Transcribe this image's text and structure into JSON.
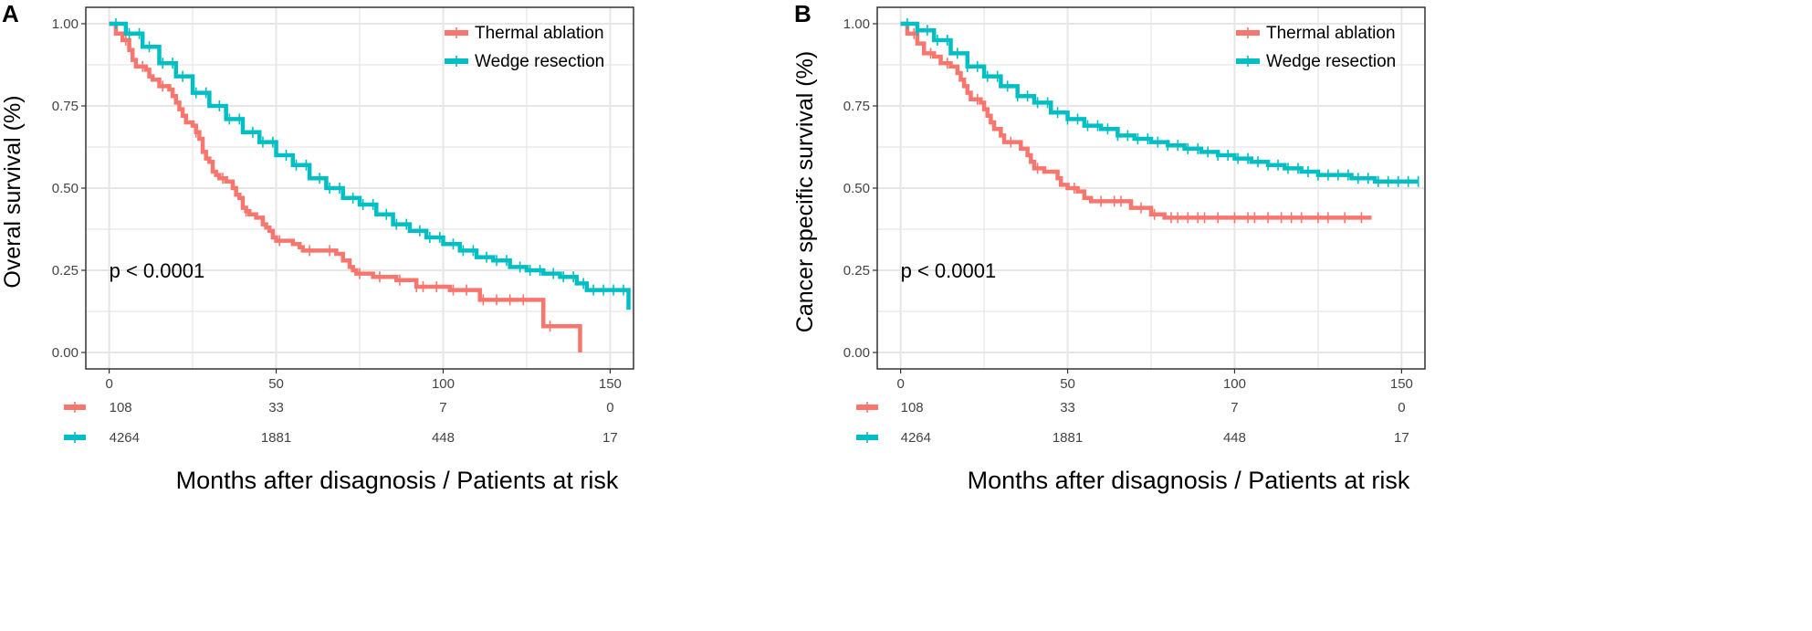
{
  "chart_data": [
    {
      "type": "line",
      "panel_label": "A",
      "ylabel": "Overal survival (%)",
      "xlabel": "Months after disagnosis / Patients at risk",
      "xlim": [
        -7,
        157
      ],
      "ylim": [
        -0.05,
        1.05
      ],
      "x_ticks": [
        "0",
        "50",
        "100",
        "150"
      ],
      "y_ticks": [
        "0.00",
        "0.25",
        "0.50",
        "0.75",
        "1.00"
      ],
      "annotation": "p < 0.0001",
      "legend_position": "top-right",
      "series": [
        {
          "name": "Thermal ablation",
          "color": "#F8766D",
          "points": [
            [
              0,
              1.0
            ],
            [
              2,
              0.97
            ],
            [
              4,
              0.95
            ],
            [
              6,
              0.92
            ],
            [
              7,
              0.89
            ],
            [
              8,
              0.87
            ],
            [
              11,
              0.86
            ],
            [
              12,
              0.84
            ],
            [
              13,
              0.83
            ],
            [
              15,
              0.81
            ],
            [
              18,
              0.8
            ],
            [
              19,
              0.78
            ],
            [
              20,
              0.76
            ],
            [
              21,
              0.74
            ],
            [
              22,
              0.72
            ],
            [
              23,
              0.7
            ],
            [
              25,
              0.69
            ],
            [
              26,
              0.67
            ],
            [
              27,
              0.65
            ],
            [
              28,
              0.61
            ],
            [
              29,
              0.59
            ],
            [
              30,
              0.58
            ],
            [
              31,
              0.55
            ],
            [
              32,
              0.54
            ],
            [
              33,
              0.53
            ],
            [
              35,
              0.52
            ],
            [
              36,
              0.52
            ],
            [
              37,
              0.5
            ],
            [
              38,
              0.48
            ],
            [
              39,
              0.47
            ],
            [
              40,
              0.44
            ],
            [
              41,
              0.43
            ],
            [
              42,
              0.42
            ],
            [
              44,
              0.41
            ],
            [
              46,
              0.39
            ],
            [
              47,
              0.38
            ],
            [
              48,
              0.37
            ],
            [
              49,
              0.35
            ],
            [
              50,
              0.34
            ],
            [
              55,
              0.33
            ],
            [
              57,
              0.32
            ],
            [
              58,
              0.31
            ],
            [
              62,
              0.31
            ],
            [
              68,
              0.3
            ],
            [
              70,
              0.28
            ],
            [
              72,
              0.26
            ],
            [
              73,
              0.25
            ],
            [
              74,
              0.24
            ],
            [
              78,
              0.24
            ],
            [
              79,
              0.23
            ],
            [
              85,
              0.23
            ],
            [
              86,
              0.22
            ],
            [
              91,
              0.22
            ],
            [
              92,
              0.2
            ],
            [
              100,
              0.2
            ],
            [
              102,
              0.19
            ],
            [
              110,
              0.19
            ],
            [
              111,
              0.16
            ],
            [
              123,
              0.16
            ],
            [
              129,
              0.16
            ],
            [
              130,
              0.08
            ],
            [
              140,
              0.08
            ],
            [
              141,
              0.0
            ]
          ],
          "censor_x": [
            5,
            10,
            16,
            26,
            34,
            41,
            51,
            60,
            66,
            75,
            81,
            87,
            92,
            94,
            98,
            103,
            107,
            112,
            116,
            120,
            124,
            132
          ]
        },
        {
          "name": "Wedge resection",
          "color": "#00BFC4",
          "points": [
            [
              0,
              1.0
            ],
            [
              5,
              0.97
            ],
            [
              10,
              0.93
            ],
            [
              15,
              0.88
            ],
            [
              20,
              0.84
            ],
            [
              25,
              0.79
            ],
            [
              30,
              0.75
            ],
            [
              35,
              0.71
            ],
            [
              40,
              0.67
            ],
            [
              45,
              0.64
            ],
            [
              50,
              0.6
            ],
            [
              55,
              0.57
            ],
            [
              60,
              0.53
            ],
            [
              65,
              0.5
            ],
            [
              70,
              0.47
            ],
            [
              75,
              0.45
            ],
            [
              80,
              0.42
            ],
            [
              85,
              0.39
            ],
            [
              90,
              0.37
            ],
            [
              95,
              0.35
            ],
            [
              100,
              0.33
            ],
            [
              105,
              0.31
            ],
            [
              110,
              0.29
            ],
            [
              115,
              0.28
            ],
            [
              120,
              0.26
            ],
            [
              125,
              0.25
            ],
            [
              130,
              0.24
            ],
            [
              135,
              0.23
            ],
            [
              140,
              0.21
            ],
            [
              143,
              0.19
            ],
            [
              149,
              0.19
            ],
            [
              155,
              0.19
            ],
            [
              155.5,
              0.13
            ]
          ],
          "censor_x": [
            2,
            6,
            9,
            12,
            16,
            19,
            22,
            26,
            29,
            33,
            36,
            39,
            43,
            46,
            49,
            53,
            56,
            59,
            63,
            66,
            69,
            73,
            76,
            79,
            83,
            86,
            89,
            93,
            96,
            99,
            103,
            106,
            109,
            113,
            116,
            119,
            123,
            126,
            129,
            133,
            136,
            139,
            142,
            145,
            148,
            151,
            154
          ]
        }
      ],
      "risk_table": {
        "columns": [
          "0",
          "50",
          "100",
          "150"
        ],
        "rows": [
          {
            "series": "Thermal ablation",
            "values": [
              "108",
              "33",
              "7",
              "0"
            ]
          },
          {
            "series": "Wedge resection",
            "values": [
              "4264",
              "1881",
              "448",
              "17"
            ]
          }
        ]
      }
    },
    {
      "type": "line",
      "panel_label": "B",
      "ylabel": "Cancer specific survival (%)",
      "xlabel": "Months after disagnosis / Patients at risk",
      "xlim": [
        -7,
        157
      ],
      "ylim": [
        -0.05,
        1.05
      ],
      "x_ticks": [
        "0",
        "50",
        "100",
        "150"
      ],
      "y_ticks": [
        "0.00",
        "0.25",
        "0.50",
        "0.75",
        "1.00"
      ],
      "annotation": "p < 0.0001",
      "legend_position": "top-right",
      "series": [
        {
          "name": "Thermal ablation",
          "color": "#F8766D",
          "points": [
            [
              0,
              1.0
            ],
            [
              2,
              0.97
            ],
            [
              5,
              0.94
            ],
            [
              7,
              0.91
            ],
            [
              10,
              0.9
            ],
            [
              12,
              0.88
            ],
            [
              15,
              0.87
            ],
            [
              17,
              0.85
            ],
            [
              18,
              0.83
            ],
            [
              19,
              0.81
            ],
            [
              20,
              0.79
            ],
            [
              21,
              0.77
            ],
            [
              24,
              0.76
            ],
            [
              25,
              0.74
            ],
            [
              26,
              0.72
            ],
            [
              27,
              0.7
            ],
            [
              28,
              0.68
            ],
            [
              30,
              0.66
            ],
            [
              31,
              0.64
            ],
            [
              35,
              0.64
            ],
            [
              36,
              0.62
            ],
            [
              38,
              0.6
            ],
            [
              39,
              0.58
            ],
            [
              40,
              0.56
            ],
            [
              43,
              0.55
            ],
            [
              47,
              0.53
            ],
            [
              48,
              0.51
            ],
            [
              50,
              0.5
            ],
            [
              53,
              0.49
            ],
            [
              55,
              0.47
            ],
            [
              57,
              0.46
            ],
            [
              68,
              0.46
            ],
            [
              69,
              0.44
            ],
            [
              74,
              0.44
            ],
            [
              75,
              0.42
            ],
            [
              79,
              0.41
            ],
            [
              141,
              0.41
            ]
          ],
          "censor_x": [
            4,
            9,
            14,
            23,
            33,
            41,
            52,
            60,
            64,
            66,
            72,
            76,
            81,
            83,
            86,
            89,
            91,
            95,
            100,
            104,
            106,
            110,
            114,
            117,
            120,
            125,
            128,
            133,
            138
          ]
        },
        {
          "name": "Wedge resection",
          "color": "#00BFC4",
          "points": [
            [
              0,
              1.0
            ],
            [
              5,
              0.98
            ],
            [
              10,
              0.95
            ],
            [
              15,
              0.91
            ],
            [
              20,
              0.87
            ],
            [
              25,
              0.84
            ],
            [
              30,
              0.81
            ],
            [
              35,
              0.78
            ],
            [
              40,
              0.76
            ],
            [
              45,
              0.73
            ],
            [
              50,
              0.71
            ],
            [
              55,
              0.69
            ],
            [
              60,
              0.68
            ],
            [
              65,
              0.66
            ],
            [
              70,
              0.65
            ],
            [
              75,
              0.64
            ],
            [
              80,
              0.63
            ],
            [
              85,
              0.62
            ],
            [
              90,
              0.61
            ],
            [
              95,
              0.6
            ],
            [
              100,
              0.59
            ],
            [
              105,
              0.58
            ],
            [
              110,
              0.57
            ],
            [
              115,
              0.56
            ],
            [
              120,
              0.55
            ],
            [
              125,
              0.54
            ],
            [
              130,
              0.54
            ],
            [
              135,
              0.53
            ],
            [
              140,
              0.53
            ],
            [
              142,
              0.52
            ],
            [
              155,
              0.52
            ]
          ],
          "censor_x": [
            2,
            5,
            8,
            11,
            14,
            17,
            20,
            23,
            26,
            29,
            32,
            35,
            38,
            41,
            44,
            47,
            50,
            53,
            56,
            59,
            62,
            65,
            68,
            71,
            74,
            77,
            80,
            83,
            86,
            89,
            92,
            95,
            98,
            101,
            104,
            107,
            110,
            113,
            116,
            119,
            122,
            125,
            128,
            131,
            134,
            137,
            140,
            143,
            146,
            149,
            152,
            155
          ]
        }
      ],
      "risk_table": {
        "columns": [
          "0",
          "50",
          "100",
          "150"
        ],
        "rows": [
          {
            "series": "Thermal ablation",
            "values": [
              "108",
              "33",
              "7",
              "0"
            ]
          },
          {
            "series": "Wedge resection",
            "values": [
              "4264",
              "1881",
              "448",
              "17"
            ]
          }
        ]
      }
    }
  ]
}
